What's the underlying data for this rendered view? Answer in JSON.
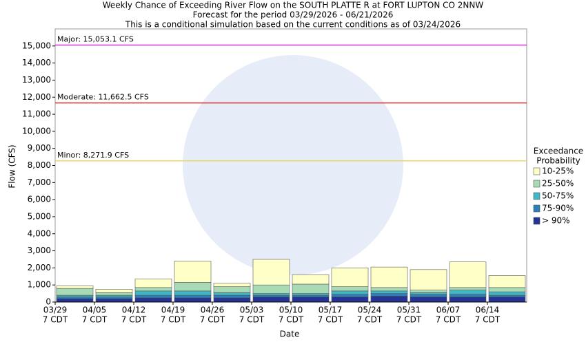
{
  "chart_data": {
    "type": "stacked_bar",
    "title": "Weekly Chance of Exceeding River Flow on the SOUTH PLATTE R at FORT LUPTON CO 2NNW",
    "subtitle": "Forecast for the period 03/29/2026 - 06/21/2026",
    "note": "This is a conditional simulation based on the current conditions as of 03/24/2026",
    "x_label": "Date",
    "y_label": "Flow (CFS)",
    "legend_title": [
      "Exceedance",
      "Probability"
    ],
    "legend_position": "right",
    "categories": [
      "03/29",
      "04/05",
      "04/12",
      "04/19",
      "04/26",
      "05/03",
      "05/10",
      "05/17",
      "05/24",
      "05/31",
      "06/07",
      "06/14"
    ],
    "category_sublabels": [
      "7 CDT",
      "7 CDT",
      "7 CDT",
      "7 CDT",
      "7 CDT",
      "7 CDT",
      "7 CDT",
      "7 CDT",
      "7 CDT",
      "7 CDT",
      "7 CDT",
      "7 CDT"
    ],
    "series": [
      {
        "name": "> 90%",
        "color": "#253494",
        "values": [
          200,
          200,
          250,
          250,
          250,
          300,
          300,
          300,
          350,
          300,
          300,
          300
        ]
      },
      {
        "name": "75-90%",
        "color": "#2c7fb8",
        "values": [
          100,
          100,
          150,
          150,
          150,
          100,
          100,
          150,
          150,
          150,
          150,
          100
        ]
      },
      {
        "name": "50-75%",
        "color": "#41b6c4",
        "values": [
          100,
          100,
          250,
          250,
          150,
          100,
          100,
          200,
          150,
          100,
          250,
          200
        ]
      },
      {
        "name": "25-50%",
        "color": "#a8dbb5",
        "values": [
          400,
          150,
          200,
          500,
          350,
          500,
          550,
          250,
          200,
          150,
          150,
          250
        ]
      },
      {
        "name": "10-25%",
        "color": "#ffffc8",
        "values": [
          150,
          200,
          500,
          1250,
          200,
          1500,
          550,
          1100,
          1200,
          1200,
          1500,
          700
        ]
      }
    ],
    "thresholds": [
      {
        "label": "Major: 15,053.1 CFS",
        "value": 15053.1,
        "color": "#cc33cc"
      },
      {
        "label": "Moderate: 11,662.5 CFS",
        "value": 11662.5,
        "color": "#e03030"
      },
      {
        "label": "Minor: 8,271.9 CFS",
        "value": 8271.9,
        "color": "#e8d860"
      }
    ],
    "ylim": [
      0,
      16000
    ],
    "yticks": [
      0,
      {
        "value": 1000,
        "label": "1,000"
      },
      {
        "value": 2000,
        "label": "2,000"
      },
      {
        "value": 3000,
        "label": "3,000"
      },
      {
        "value": 4000,
        "label": "4,000"
      },
      {
        "value": 5000,
        "label": "5,000"
      },
      {
        "value": 6000,
        "label": "6,000"
      },
      {
        "value": 7000,
        "label": "7,000"
      },
      {
        "value": 8000,
        "label": "8,000"
      },
      {
        "value": 9000,
        "label": "9,000"
      },
      {
        "value": 10000,
        "label": "10,000"
      },
      {
        "value": 11000,
        "label": "11,000"
      },
      {
        "value": 12000,
        "label": "12,000"
      },
      {
        "value": 13000,
        "label": "13,000"
      },
      {
        "value": 14000,
        "label": "14,000"
      },
      {
        "value": 15000,
        "label": "15,000"
      }
    ],
    "grid": false
  }
}
